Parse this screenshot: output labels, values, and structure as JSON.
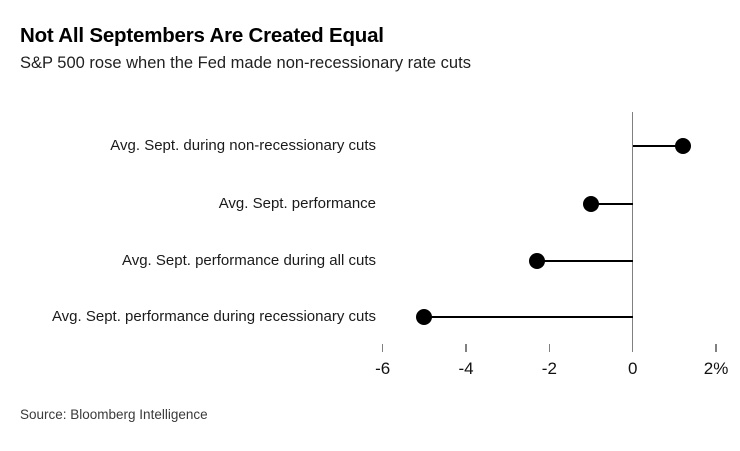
{
  "header": {
    "title": "Not All Septembers Are Created Equal",
    "subtitle": "S&P 500 rose when the Fed made non-recessionary rate cuts"
  },
  "footer": {
    "source": "Source: Bloomberg Intelligence"
  },
  "chart_data": {
    "type": "bar",
    "variant": "lollipop",
    "orientation": "horizontal",
    "title": "Not All Septembers Are Created Equal",
    "subtitle": "S&P 500 rose when the Fed made non-recessionary rate cuts",
    "categories": [
      "Avg. Sept. during non-recessionary cuts",
      "Avg. Sept. performance",
      "Avg. Sept. performance during all cuts",
      "Avg. Sept. performance during recessionary cuts"
    ],
    "values": [
      1.2,
      -1.0,
      -2.3,
      -5.0
    ],
    "unit": "%",
    "xlabel": "",
    "ylabel": "",
    "xlim": [
      -6.6,
      2.6
    ],
    "x_ticks": [
      -6,
      -4,
      -2,
      0,
      2
    ],
    "x_tick_labels": [
      "-6",
      "-4",
      "-2",
      "0",
      "2%"
    ],
    "baseline": 0,
    "grid": false,
    "legend": null
  },
  "colors": {
    "background": "#ffffff",
    "title_text": "#000000",
    "subtitle_text": "#1f1f1f",
    "category_text": "#1a1a1a",
    "tick_text": "#111111",
    "axis_line": "#808080",
    "dot": "#000000",
    "stem": "#000000",
    "source_text": "#3a3a3a"
  }
}
